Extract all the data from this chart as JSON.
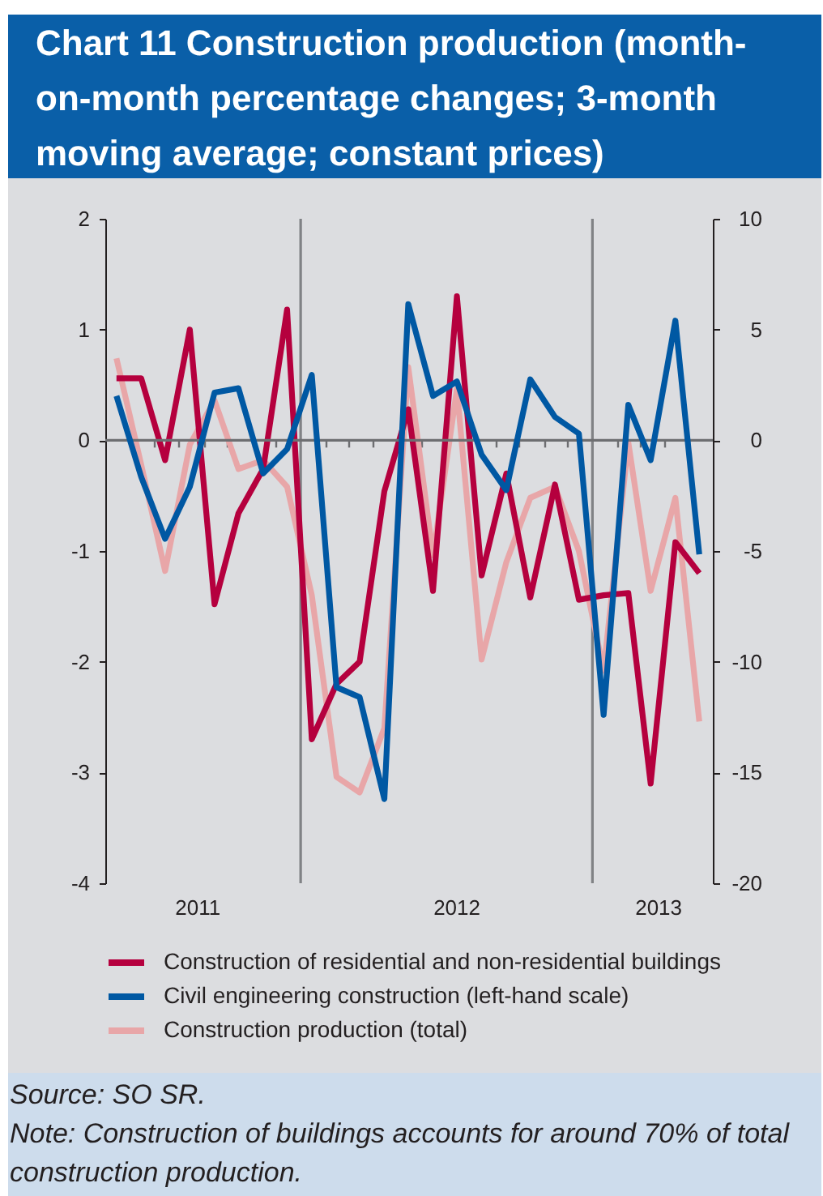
{
  "chart_data": {
    "type": "line",
    "title": "Chart 11 Construction production (month-on-month percentage changes; 3-month moving average; constant prices)",
    "x": [
      "2011-05-15",
      "2011-06-15",
      "2011-07-15",
      "2011-08-15",
      "2011-09-15",
      "2011-10-15",
      "2011-11-15",
      "2011-12-15",
      "2012-01-15",
      "2012-02-15",
      "2012-03-15",
      "2012-04-15",
      "2012-05-15",
      "2012-06-15",
      "2012-07-15",
      "2012-08-15",
      "2012-09-15",
      "2012-10-15",
      "2012-11-15",
      "2012-12-15",
      "2013-01-15",
      "2013-02-15",
      "2013-03-15",
      "2013-04-15",
      "2013-05-15"
    ],
    "series": [
      {
        "name": "Construction of residential and non-residential buildings",
        "color": "#b5003e",
        "axis": "y2",
        "values": [
          2.8,
          2.8,
          -0.9,
          5.0,
          -7.4,
          -3.3,
          -1.3,
          5.9,
          -13.5,
          -11.0,
          -10.0,
          -2.3,
          1.4,
          -6.8,
          6.5,
          -6.1,
          -1.5,
          -7.1,
          -2.0,
          -7.2,
          -7.0,
          -6.9,
          -15.5,
          -4.6,
          -6.0
        ]
      },
      {
        "name": "Civil engineering construction (left-hand scale)",
        "color": "#0058a3",
        "axis": "y",
        "values": [
          0.4,
          -0.33,
          -0.89,
          -0.42,
          0.43,
          0.47,
          -0.3,
          -0.08,
          0.59,
          -2.23,
          -2.32,
          -3.24,
          1.23,
          0.4,
          0.53,
          -0.13,
          -0.45,
          0.55,
          0.21,
          0.06,
          -2.48,
          0.32,
          -0.18,
          1.08,
          -1.03
        ]
      },
      {
        "name": "Construction production (total)",
        "color": "#e8a6a8",
        "axis": "y2",
        "values": [
          3.7,
          -1.1,
          -5.9,
          -0.2,
          1.8,
          -1.3,
          -0.9,
          -2.1,
          -7.0,
          -15.2,
          -15.9,
          -13.0,
          3.3,
          -5.2,
          2.3,
          -9.9,
          -5.5,
          -2.6,
          -2.1,
          -5.0,
          -10.4,
          -0.1,
          -6.8,
          -2.6,
          -12.7
        ]
      }
    ],
    "xlim": [
      "2011-05-01",
      "2013-06-01"
    ],
    "xticks": [
      {
        "value": "2011-06-01",
        "label": null
      },
      {
        "value": "2011-07-01",
        "label": null
      },
      {
        "value": "2011-08-01",
        "label": null
      },
      {
        "value": "2011-08-24",
        "label": "2011"
      },
      {
        "value": "2011-09-01",
        "label": null
      },
      {
        "value": "2011-10-01",
        "label": null
      },
      {
        "value": "2011-11-01",
        "label": null
      },
      {
        "value": "2011-12-01",
        "label": null
      },
      {
        "value": "2012-02-01",
        "label": null
      },
      {
        "value": "2012-03-01",
        "label": null
      },
      {
        "value": "2012-04-01",
        "label": null
      },
      {
        "value": "2012-05-01",
        "label": null
      },
      {
        "value": "2012-06-01",
        "label": null
      },
      {
        "value": "2012-07-01",
        "label": null
      },
      {
        "value": "2012-07-14",
        "label": "2012"
      },
      {
        "value": "2012-08-01",
        "label": null
      },
      {
        "value": "2012-09-01",
        "label": null
      },
      {
        "value": "2012-10-01",
        "label": null
      },
      {
        "value": "2012-11-01",
        "label": null
      },
      {
        "value": "2012-12-01",
        "label": null
      },
      {
        "value": "2013-02-01",
        "label": null
      },
      {
        "value": "2013-03-01",
        "label": null
      },
      {
        "value": "2013-03-24",
        "label": "2013"
      },
      {
        "value": "2013-04-01",
        "label": null
      },
      {
        "value": "2013-05-01",
        "label": null
      }
    ],
    "ylim": [
      -4,
      2
    ],
    "yticks": [
      -4,
      -3,
      -2,
      -1,
      0,
      1,
      2
    ],
    "y2lim": [
      -20,
      10
    ],
    "y2ticks": [
      -20,
      -15,
      -10,
      -5,
      0,
      5,
      10
    ],
    "ref_lines": [
      {
        "axis": "y",
        "value": 0,
        "color": "#6d6e71"
      },
      {
        "axis": "x",
        "value": "2012-01-01",
        "color": "#808285"
      },
      {
        "axis": "x",
        "value": "2013-01-01",
        "color": "#808285"
      }
    ],
    "legend": "bottom",
    "annotations": [
      "Source: SO SR.",
      "Note: Construction of buildings accounts for around 70% of total construction production."
    ]
  }
}
